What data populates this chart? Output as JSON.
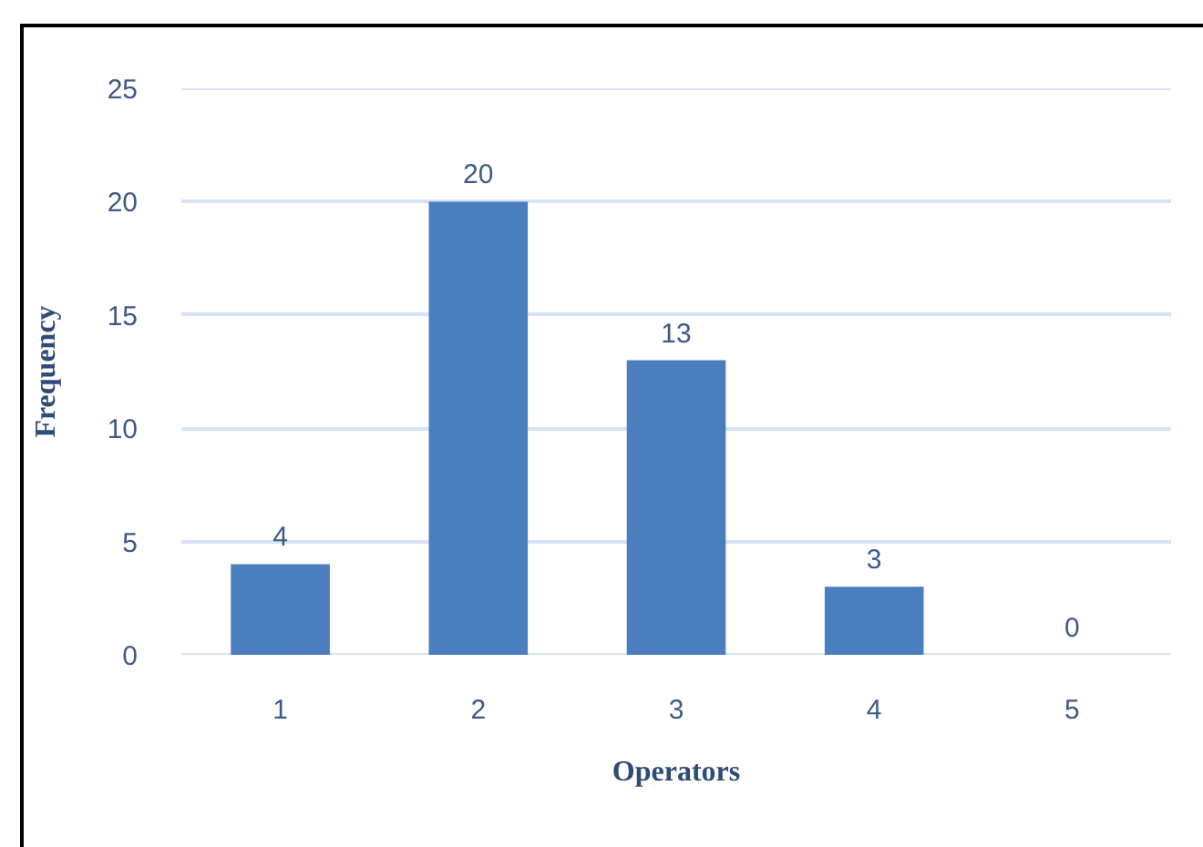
{
  "chart_data": {
    "type": "bar",
    "xlabel": "Operators",
    "ylabel": "Frequency",
    "categories": [
      "1",
      "2",
      "3",
      "4",
      "5"
    ],
    "values": [
      4,
      20,
      13,
      3,
      0
    ],
    "color": "#4a7ebf",
    "ylim": [
      0,
      25
    ],
    "yticks": [
      0,
      5,
      10,
      15,
      20,
      25
    ],
    "grid": "y",
    "data_labels": true
  }
}
